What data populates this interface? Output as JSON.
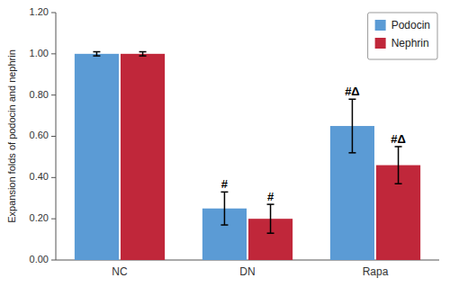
{
  "chart_data": {
    "type": "bar",
    "categories": [
      "NC",
      "DN",
      "Rapa"
    ],
    "series": [
      {
        "name": "Podocin",
        "color": "#5B9BD5",
        "values": [
          1.0,
          0.25,
          0.65
        ],
        "errors": [
          0.01,
          0.08,
          0.13
        ],
        "annotations": [
          null,
          "#",
          "#Δ"
        ]
      },
      {
        "name": "Nephrin",
        "color": "#C0273A",
        "values": [
          1.0,
          0.2,
          0.46
        ],
        "errors": [
          0.01,
          0.07,
          0.09
        ],
        "annotations": [
          null,
          "#",
          "#Δ"
        ]
      }
    ],
    "ylabel": "Expansion folds of podocin and nephrin",
    "ylim": [
      0,
      1.2
    ],
    "yticks": [
      {
        "value": 0.0,
        "label": "0.00"
      },
      {
        "value": 0.2,
        "label": "0.20"
      },
      {
        "value": 0.4,
        "label": "0.40"
      },
      {
        "value": 0.6,
        "label": "0.60"
      },
      {
        "value": 0.8,
        "label": "0.80"
      },
      {
        "value": 1.0,
        "label": "1.00"
      },
      {
        "value": 1.2,
        "label": "1.20"
      }
    ],
    "legend": "upper right"
  }
}
